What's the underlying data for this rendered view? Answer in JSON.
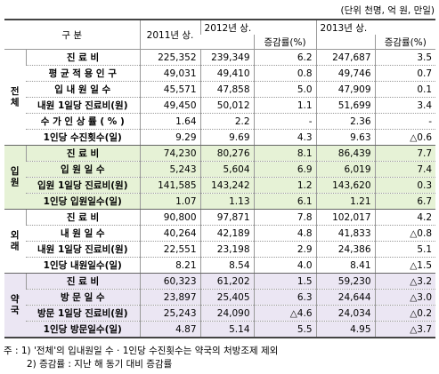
{
  "unit": "(단위 천명, 억 원, 만일)",
  "header": {
    "category": "구 분",
    "y2011": "2011년 상.",
    "y2012": "2012년 상.",
    "rate2012": "증감률(%)",
    "y2013": "2013년 상.",
    "rate2013": "증감률(%)"
  },
  "groups": [
    {
      "label": "전체",
      "rows": [
        [
          "진 료 비",
          "225,352",
          "239,349",
          "6.2",
          "247,687",
          "3.5"
        ],
        [
          "평 균 적 용 인 구",
          "49,031",
          "49,410",
          "0.8",
          "49,746",
          "0.7"
        ],
        [
          "입 내 원 일 수",
          "45,571",
          "47,858",
          "5.0",
          "47,909",
          "0.1"
        ],
        [
          "내원 1일당 진료비(원)",
          "49,450",
          "50,012",
          "1.1",
          "51,699",
          "3.4"
        ],
        [
          "수 가 인 상 률 ( % )",
          "1.64",
          "2.2",
          "-",
          "2.36",
          "-"
        ],
        [
          "1인당 수진횟수(일)",
          "9.29",
          "9.69",
          "4.3",
          "9.63",
          "△0.6"
        ]
      ]
    },
    {
      "label": "입원",
      "rows": [
        [
          "진 료 비",
          "74,230",
          "80,276",
          "8.1",
          "86,439",
          "7.7"
        ],
        [
          "입 원 일 수",
          "5,243",
          "5,604",
          "6.9",
          "6,019",
          "7.4"
        ],
        [
          "입원 1일당 진료비(원)",
          "141,585",
          "143,242",
          "1.2",
          "143,620",
          "0.3"
        ],
        [
          "1인당 입원일수(일)",
          "1.07",
          "1.13",
          "6.1",
          "1.21",
          "6.7"
        ]
      ]
    },
    {
      "label": "외래",
      "rows": [
        [
          "진 료 비",
          "90,800",
          "97,871",
          "7.8",
          "102,017",
          "4.2"
        ],
        [
          "내 원 일 수",
          "40,264",
          "42,189",
          "4.8",
          "41,833",
          "△0.8"
        ],
        [
          "내원 1일당 진료비(원)",
          "22,551",
          "23,198",
          "2.9",
          "24,386",
          "5.1"
        ],
        [
          "1인당 내원일수(일)",
          "8.21",
          "8.54",
          "4.0",
          "8.41",
          "△1.5"
        ]
      ]
    },
    {
      "label": "약국",
      "rows": [
        [
          "진 료 비",
          "60,323",
          "61,202",
          "1.5",
          "59,230",
          "△3.2"
        ],
        [
          "방 문 일 수",
          "23,897",
          "25,405",
          "6.3",
          "24,644",
          "△3.0"
        ],
        [
          "방문 1일당 진료비(원)",
          "25,243",
          "24,090",
          "△4.6",
          "24,034",
          "△0.2"
        ],
        [
          "1인당 방문일수(일)",
          "4.87",
          "5.14",
          "5.5",
          "4.95",
          "△3.7"
        ]
      ]
    }
  ],
  "notes": [
    "주 : 1) '전체'의 입내원일 수 · 1인당 수진횟수는 약국의 처방조제 제외",
    "2) 증감률 : 지난 해 동기 대비 증감률"
  ]
}
